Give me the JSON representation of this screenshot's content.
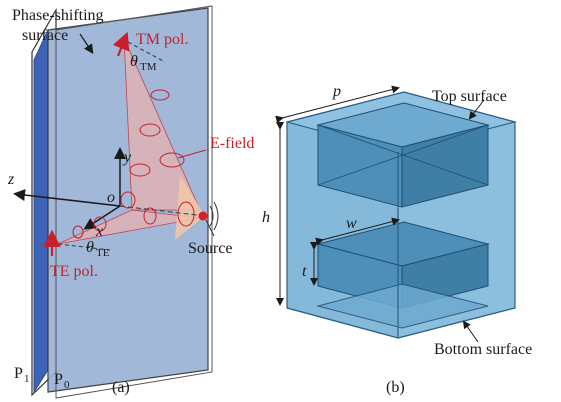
{
  "panel_a": {
    "caption": "(a)",
    "phase_label_line1": "Phase-shifting",
    "phase_label_line2": "surface",
    "tm_label": "TM pol.",
    "theta_tm_symbol": "θ",
    "theta_tm_sub": "TM",
    "efield_label": "E-field",
    "y_axis": "y",
    "z_axis": "z",
    "x_axis": "x",
    "origin": "o",
    "theta_te_symbol": "θ",
    "theta_te_sub": "TE",
    "te_label": "TE pol.",
    "source_label": "Source",
    "p1_label": "P",
    "p1_sub": "1",
    "p0_label": "P",
    "p0_sub": "0"
  },
  "panel_b": {
    "caption": "(b)",
    "p_label": "p",
    "top_surface_label": "Top surface",
    "h_label": "h",
    "w_label": "w",
    "t_label": "t",
    "bottom_surface_label": "Bottom surface"
  },
  "colors": {
    "panel_fill": "#9bb2d6",
    "panel_edge": "#2e4f8e",
    "red": "#c8202a",
    "cube_fill": "#7fb6d8",
    "cube_dark": "#3f7fa6"
  }
}
